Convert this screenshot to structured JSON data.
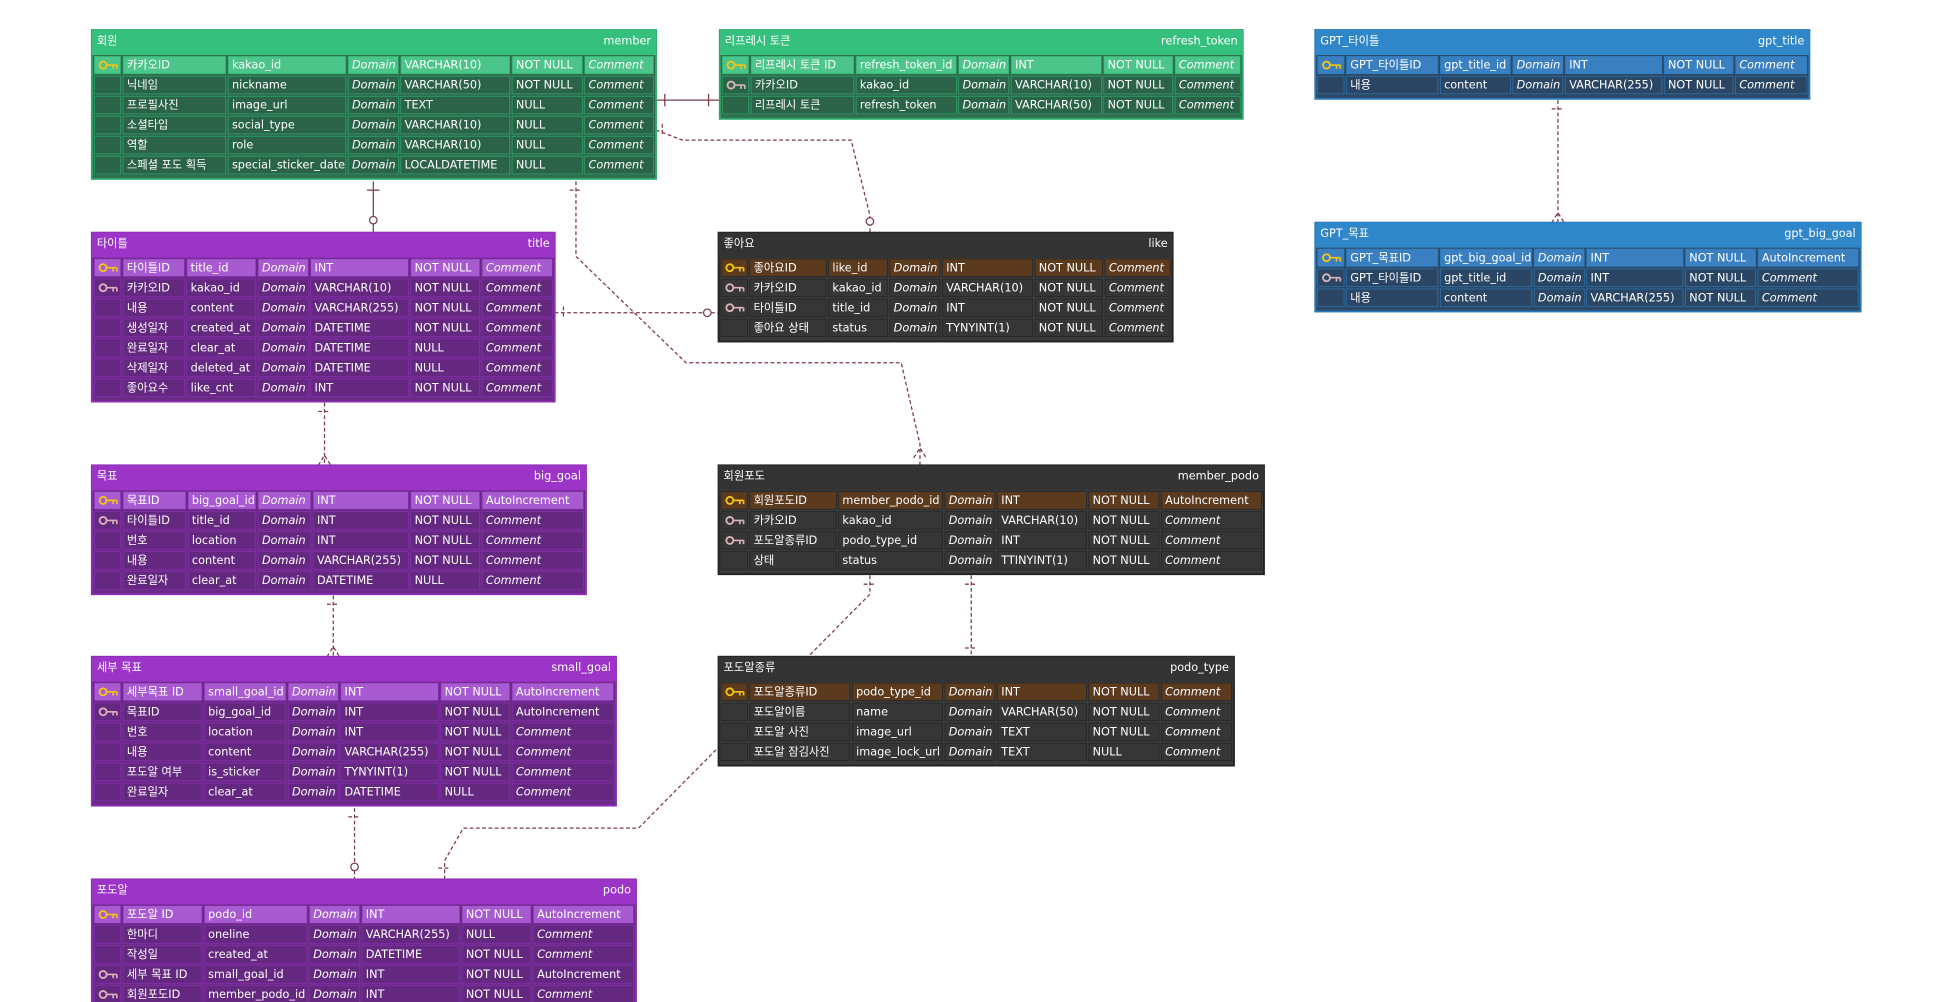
{
  "tables": [
    {
      "theme": "green",
      "title": "회원",
      "name": "member",
      "rows": [
        {
          "key": "pk",
          "cells": [
            "카카오ID",
            "kakao_id",
            "Domain",
            "VARCHAR(10)",
            "NOT NULL",
            "Comment"
          ]
        },
        {
          "cells": [
            "닉네임",
            "nickname",
            "Domain",
            "VARCHAR(50)",
            "NOT NULL",
            "Comment"
          ]
        },
        {
          "cells": [
            "프로필사진",
            "image_url",
            "Domain",
            "TEXT",
            "NULL",
            "Comment"
          ]
        },
        {
          "cells": [
            "소셜타입",
            "social_type",
            "Domain",
            "VARCHAR(10)",
            "NULL",
            "Comment"
          ]
        },
        {
          "cells": [
            "역할",
            "role",
            "Domain",
            "VARCHAR(10)",
            "NULL",
            "Comment"
          ]
        },
        {
          "cells": [
            "스페셜 포도 획득",
            "special_sticker_date",
            "Domain",
            "LOCALDATETIME",
            "NULL",
            "Comment"
          ]
        }
      ]
    },
    {
      "theme": "green",
      "title": "리프레시 토큰",
      "name": "refresh_token",
      "rows": [
        {
          "key": "pk",
          "cells": [
            "리프레시 토큰 ID",
            "refresh_token_id",
            "Domain",
            "INT",
            "NOT NULL",
            "Comment"
          ]
        },
        {
          "key": "fk",
          "cells": [
            "카카오ID",
            "kakao_id",
            "Domain",
            "VARCHAR(10)",
            "NOT NULL",
            "Comment"
          ]
        },
        {
          "cells": [
            "리프레시 토큰",
            "refresh_token",
            "Domain",
            "VARCHAR(50)",
            "NOT NULL",
            "Comment"
          ]
        }
      ]
    },
    {
      "theme": "blue",
      "title": "GPT_타이틀",
      "name": "gpt_title",
      "rows": [
        {
          "key": "pk",
          "cells": [
            "GPT_타이틀ID",
            "gpt_title_id",
            "Domain",
            "INT",
            "NOT NULL",
            "Comment"
          ]
        },
        {
          "cells": [
            "내용",
            "content",
            "Domain",
            "VARCHAR(255)",
            "NOT NULL",
            "Comment"
          ]
        }
      ]
    },
    {
      "theme": "blue",
      "title": "GPT_목표",
      "name": "gpt_big_goal",
      "rows": [
        {
          "key": "pk",
          "cells": [
            "GPT_목표ID",
            "gpt_big_goal_id",
            "Domain",
            "INT",
            "NOT NULL",
            "AutoIncrement"
          ]
        },
        {
          "key": "fk",
          "cells": [
            "GPT_타이틀ID",
            "gpt_title_id",
            "Domain",
            "INT",
            "NOT NULL",
            "Comment"
          ]
        },
        {
          "cells": [
            "내용",
            "content",
            "Domain",
            "VARCHAR(255)",
            "NOT NULL",
            "Comment"
          ]
        }
      ]
    },
    {
      "theme": "purple",
      "title": "타이틀",
      "name": "title",
      "rows": [
        {
          "key": "pk",
          "cells": [
            "타이틀ID",
            "title_id",
            "Domain",
            "INT",
            "NOT NULL",
            "Comment"
          ]
        },
        {
          "key": "fk",
          "cells": [
            "카카오ID",
            "kakao_id",
            "Domain",
            "VARCHAR(10)",
            "NOT NULL",
            "Comment"
          ]
        },
        {
          "cells": [
            "내용",
            "content",
            "Domain",
            "VARCHAR(255)",
            "NOT NULL",
            "Comment"
          ]
        },
        {
          "cells": [
            "생성일자",
            "created_at",
            "Domain",
            "DATETIME",
            "NOT NULL",
            "Comment"
          ]
        },
        {
          "cells": [
            "완료일자",
            "clear_at",
            "Domain",
            "DATETIME",
            "NULL",
            "Comment"
          ]
        },
        {
          "cells": [
            "삭제일자",
            "deleted_at",
            "Domain",
            "DATETIME",
            "NULL",
            "Comment"
          ]
        },
        {
          "cells": [
            "좋아요수",
            "like_cnt",
            "Domain",
            "INT",
            "NOT NULL",
            "Comment"
          ]
        }
      ]
    },
    {
      "theme": "dark",
      "title": "좋아요",
      "name": "like",
      "rows": [
        {
          "key": "pk",
          "cells": [
            "좋아요ID",
            "like_id",
            "Domain",
            "INT",
            "NOT NULL",
            "Comment"
          ]
        },
        {
          "key": "fk",
          "cells": [
            "카카오ID",
            "kakao_id",
            "Domain",
            "VARCHAR(10)",
            "NOT NULL",
            "Comment"
          ]
        },
        {
          "key": "fk",
          "cells": [
            "타이틀ID",
            "title_id",
            "Domain",
            "INT",
            "NOT NULL",
            "Comment"
          ]
        },
        {
          "cells": [
            "좋아요 상태",
            "status",
            "Domain",
            "TYNYINT(1)",
            "NOT NULL",
            "Comment"
          ]
        }
      ]
    },
    {
      "theme": "purple",
      "title": "목표",
      "name": "big_goal",
      "rows": [
        {
          "key": "pk",
          "cells": [
            "목표ID",
            "big_goal_id",
            "Domain",
            "INT",
            "NOT NULL",
            "AutoIncrement"
          ]
        },
        {
          "key": "fk",
          "cells": [
            "타이틀ID",
            "title_id",
            "Domain",
            "INT",
            "NOT NULL",
            "Comment"
          ]
        },
        {
          "cells": [
            "번호",
            "location",
            "Domain",
            "INT",
            "NOT NULL",
            "Comment"
          ]
        },
        {
          "cells": [
            "내용",
            "content",
            "Domain",
            "VARCHAR(255)",
            "NOT NULL",
            "Comment"
          ]
        },
        {
          "cells": [
            "완료일자",
            "clear_at",
            "Domain",
            "DATETIME",
            "NULL",
            "Comment"
          ]
        }
      ]
    },
    {
      "theme": "dark",
      "title": "회원포도",
      "name": "member_podo",
      "rows": [
        {
          "key": "pk",
          "cells": [
            "회원포도ID",
            "member_podo_id",
            "Domain",
            "INT",
            "NOT NULL",
            "AutoIncrement"
          ]
        },
        {
          "key": "fk",
          "cells": [
            "카카오ID",
            "kakao_id",
            "Domain",
            "VARCHAR(10)",
            "NOT NULL",
            "Comment"
          ]
        },
        {
          "key": "fk",
          "cells": [
            "포도알종류ID",
            "podo_type_id",
            "Domain",
            "INT",
            "NOT NULL",
            "Comment"
          ]
        },
        {
          "cells": [
            "상태",
            "status",
            "Domain",
            "TTINYINT(1)",
            "NOT NULL",
            "Comment"
          ]
        }
      ]
    },
    {
      "theme": "purple",
      "title": "세부 목표",
      "name": "small_goal",
      "rows": [
        {
          "key": "pk",
          "cells": [
            "세부목표 ID",
            "small_goal_id",
            "Domain",
            "INT",
            "NOT NULL",
            "AutoIncrement"
          ]
        },
        {
          "key": "fk",
          "cells": [
            "목표ID",
            "big_goal_id",
            "Domain",
            "INT",
            "NOT NULL",
            "AutoIncrement"
          ]
        },
        {
          "cells": [
            "번호",
            "location",
            "Domain",
            "INT",
            "NOT NULL",
            "Comment"
          ]
        },
        {
          "cells": [
            "내용",
            "content",
            "Domain",
            "VARCHAR(255)",
            "NOT NULL",
            "Comment"
          ]
        },
        {
          "cells": [
            "포도알 여부",
            "is_sticker",
            "Domain",
            "TYNYINT(1)",
            "NOT NULL",
            "Comment"
          ]
        },
        {
          "cells": [
            "완료일자",
            "clear_at",
            "Domain",
            "DATETIME",
            "NULL",
            "Comment"
          ]
        }
      ]
    },
    {
      "theme": "dark",
      "title": "포도알종류",
      "name": "podo_type",
      "rows": [
        {
          "key": "pk",
          "cells": [
            "포도알종류ID",
            "podo_type_id",
            "Domain",
            "INT",
            "NOT NULL",
            "Comment"
          ]
        },
        {
          "cells": [
            "포도알이름",
            "name",
            "Domain",
            "VARCHAR(50)",
            "NOT NULL",
            "Comment"
          ]
        },
        {
          "cells": [
            "포도알 사진",
            "image_url",
            "Domain",
            "TEXT",
            "NOT NULL",
            "Comment"
          ]
        },
        {
          "cells": [
            "포도알 잠김사진",
            "image_lock_url",
            "Domain",
            "TEXT",
            "NULL",
            "Comment"
          ]
        }
      ]
    },
    {
      "theme": "purple",
      "title": "포도알",
      "name": "podo",
      "rows": [
        {
          "key": "pk",
          "cells": [
            "포도알 ID",
            "podo_id",
            "Domain",
            "INT",
            "NOT NULL",
            "AutoIncrement"
          ]
        },
        {
          "cells": [
            "한마디",
            "oneline",
            "Domain",
            "VARCHAR(255)",
            "NULL",
            "Comment"
          ]
        },
        {
          "cells": [
            "작성일",
            "created_at",
            "Domain",
            "DATETIME",
            "NOT NULL",
            "Comment"
          ]
        },
        {
          "key": "fk",
          "cells": [
            "세부 목표 ID",
            "small_goal_id",
            "Domain",
            "INT",
            "NOT NULL",
            "AutoIncrement"
          ]
        },
        {
          "key": "fk",
          "cells": [
            "회원포도ID",
            "member_podo_id",
            "Domain",
            "INT",
            "NOT NULL",
            "Comment"
          ]
        }
      ]
    }
  ]
}
